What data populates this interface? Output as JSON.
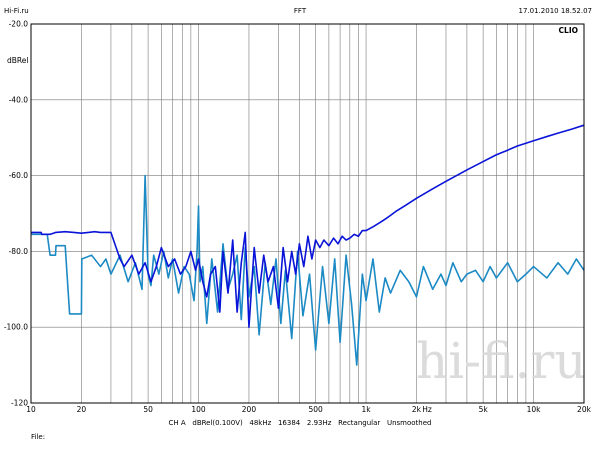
{
  "header": {
    "app_name": "Hi-Fi.ru",
    "title": "FFT",
    "timestamp": "17.01.2010 18.52.07"
  },
  "brand_label": "CLIO",
  "watermark": "hi-fi.ru",
  "footer": {
    "settings": "CH A   dBRel(0.100V)   48kHz   16384   2.93Hz   Rectangular   Unsmoothed",
    "file_label": "File:"
  },
  "chart_data": {
    "type": "line",
    "title": "FFT",
    "xlabel": "Hz",
    "ylabel": "dBRel",
    "x_scale": "log",
    "xlim": [
      10,
      20000
    ],
    "ylim": [
      -120,
      -20
    ],
    "grid": true,
    "x_tick_labels": [
      "10",
      "20",
      "50",
      "100",
      "200",
      "500",
      "1k",
      "2k",
      "5k",
      "10k",
      "20k"
    ],
    "x_tick_values": [
      10,
      20,
      50,
      100,
      200,
      500,
      1000,
      2000,
      5000,
      10000,
      20000
    ],
    "y_tick_labels": [
      "-20.0",
      "-40.0",
      "-60.0",
      "-80.0",
      "-100.0",
      "-120"
    ],
    "y_tick_values": [
      -20,
      -40,
      -60,
      -80,
      -100,
      -120
    ],
    "colors": {
      "series_dark": "#0a14d8",
      "series_light": "#1c8ac4",
      "grid": "#7a7a7a"
    },
    "series": [
      {
        "color": "#0a14d8",
        "x": [
          10,
          11.5,
          11.6,
          13,
          14,
          16,
          18,
          20,
          22,
          24,
          26,
          30,
          34,
          36,
          40,
          44,
          48,
          52,
          56,
          60,
          66,
          72,
          78,
          84,
          90,
          96,
          100,
          106,
          112,
          118,
          126,
          134,
          140,
          150,
          160,
          170,
          180,
          190,
          200,
          215,
          230,
          245,
          260,
          280,
          300,
          320,
          340,
          360,
          380,
          400,
          425,
          450,
          475,
          500,
          530,
          560,
          600,
          640,
          680,
          720,
          760,
          800,
          850,
          900,
          950,
          1000,
          1100,
          1200,
          1300,
          1400,
          1500,
          1700,
          2000,
          2500,
          3000,
          4000,
          5000,
          6000,
          7000,
          8000,
          10000,
          12000,
          14000,
          17000,
          20000
        ],
        "y": [
          -75,
          -75,
          -75.5,
          -75.5,
          -75,
          -74.8,
          -75,
          -75.2,
          -75,
          -74.8,
          -75,
          -75,
          -82,
          -84,
          -81,
          -86,
          -83,
          -88,
          -84,
          -79,
          -84,
          -82,
          -86,
          -84,
          -80,
          -85,
          -82,
          -88,
          -92,
          -86,
          -84,
          -96,
          -80,
          -91,
          -77,
          -96,
          -83,
          -75,
          -100,
          -79,
          -91,
          -81,
          -88,
          -84,
          -95,
          -79,
          -88,
          -80,
          -86,
          -78,
          -84,
          -76,
          -82,
          -77,
          -79,
          -77,
          -78.5,
          -76.5,
          -78,
          -76,
          -77,
          -76.5,
          -75.5,
          -76,
          -74.5,
          -74.5,
          -73.5,
          -72.5,
          -71.5,
          -70.5,
          -69.5,
          -68,
          -66,
          -63.5,
          -61.5,
          -58.5,
          -56.3,
          -54.5,
          -53.3,
          -52.2,
          -50.8,
          -49.7,
          -48.8,
          -47.7,
          -46.7
        ]
      },
      {
        "color": "#1c8ac4",
        "x": [
          10,
          10.3,
          12.5,
          13,
          14,
          14.1,
          16,
          17,
          17.1,
          19,
          20,
          20.1,
          23,
          26,
          28,
          30,
          34,
          38,
          42,
          46,
          48,
          50,
          52,
          54,
          58,
          62,
          66,
          70,
          76,
          82,
          88,
          94,
          98,
          100,
          102,
          106,
          112,
          120,
          130,
          140,
          150,
          160,
          170,
          180,
          190,
          200,
          215,
          230,
          250,
          270,
          290,
          310,
          330,
          360,
          390,
          420,
          460,
          500,
          550,
          600,
          650,
          700,
          760,
          820,
          880,
          950,
          1000,
          1100,
          1200,
          1300,
          1400,
          1600,
          1800,
          2000,
          2200,
          2500,
          2800,
          3000,
          3300,
          3700,
          4000,
          4500,
          5000,
          5500,
          6000,
          7000,
          8000,
          9000,
          10000,
          12000,
          14000,
          16000,
          18000,
          20000
        ],
        "y": [
          -75.5,
          -75.5,
          -75.5,
          -81,
          -81,
          -78.5,
          -78.5,
          -96.5,
          -96.5,
          -96.5,
          -96.5,
          -82,
          -81,
          -84,
          -82,
          -86,
          -81,
          -88,
          -83,
          -90,
          -60,
          -86,
          -89,
          -81,
          -86,
          -80,
          -87,
          -82,
          -91,
          -84,
          -86,
          -93,
          -80,
          -68,
          -88,
          -84,
          -99,
          -82,
          -96,
          -78,
          -90,
          -86,
          -81,
          -98,
          -79,
          -92,
          -84,
          -102,
          -83,
          -94,
          -82,
          -99,
          -85,
          -103,
          -80,
          -97,
          -86,
          -106,
          -84,
          -99,
          -82,
          -104,
          -81,
          -94,
          -110,
          -86,
          -93,
          -82,
          -96,
          -87,
          -91,
          -85,
          -88,
          -92,
          -84,
          -90,
          -86,
          -89,
          -83,
          -88,
          -86,
          -85,
          -88,
          -84,
          -87,
          -83,
          -88,
          -86,
          -84,
          -87,
          -83,
          -86,
          -82,
          -85
        ]
      }
    ]
  }
}
